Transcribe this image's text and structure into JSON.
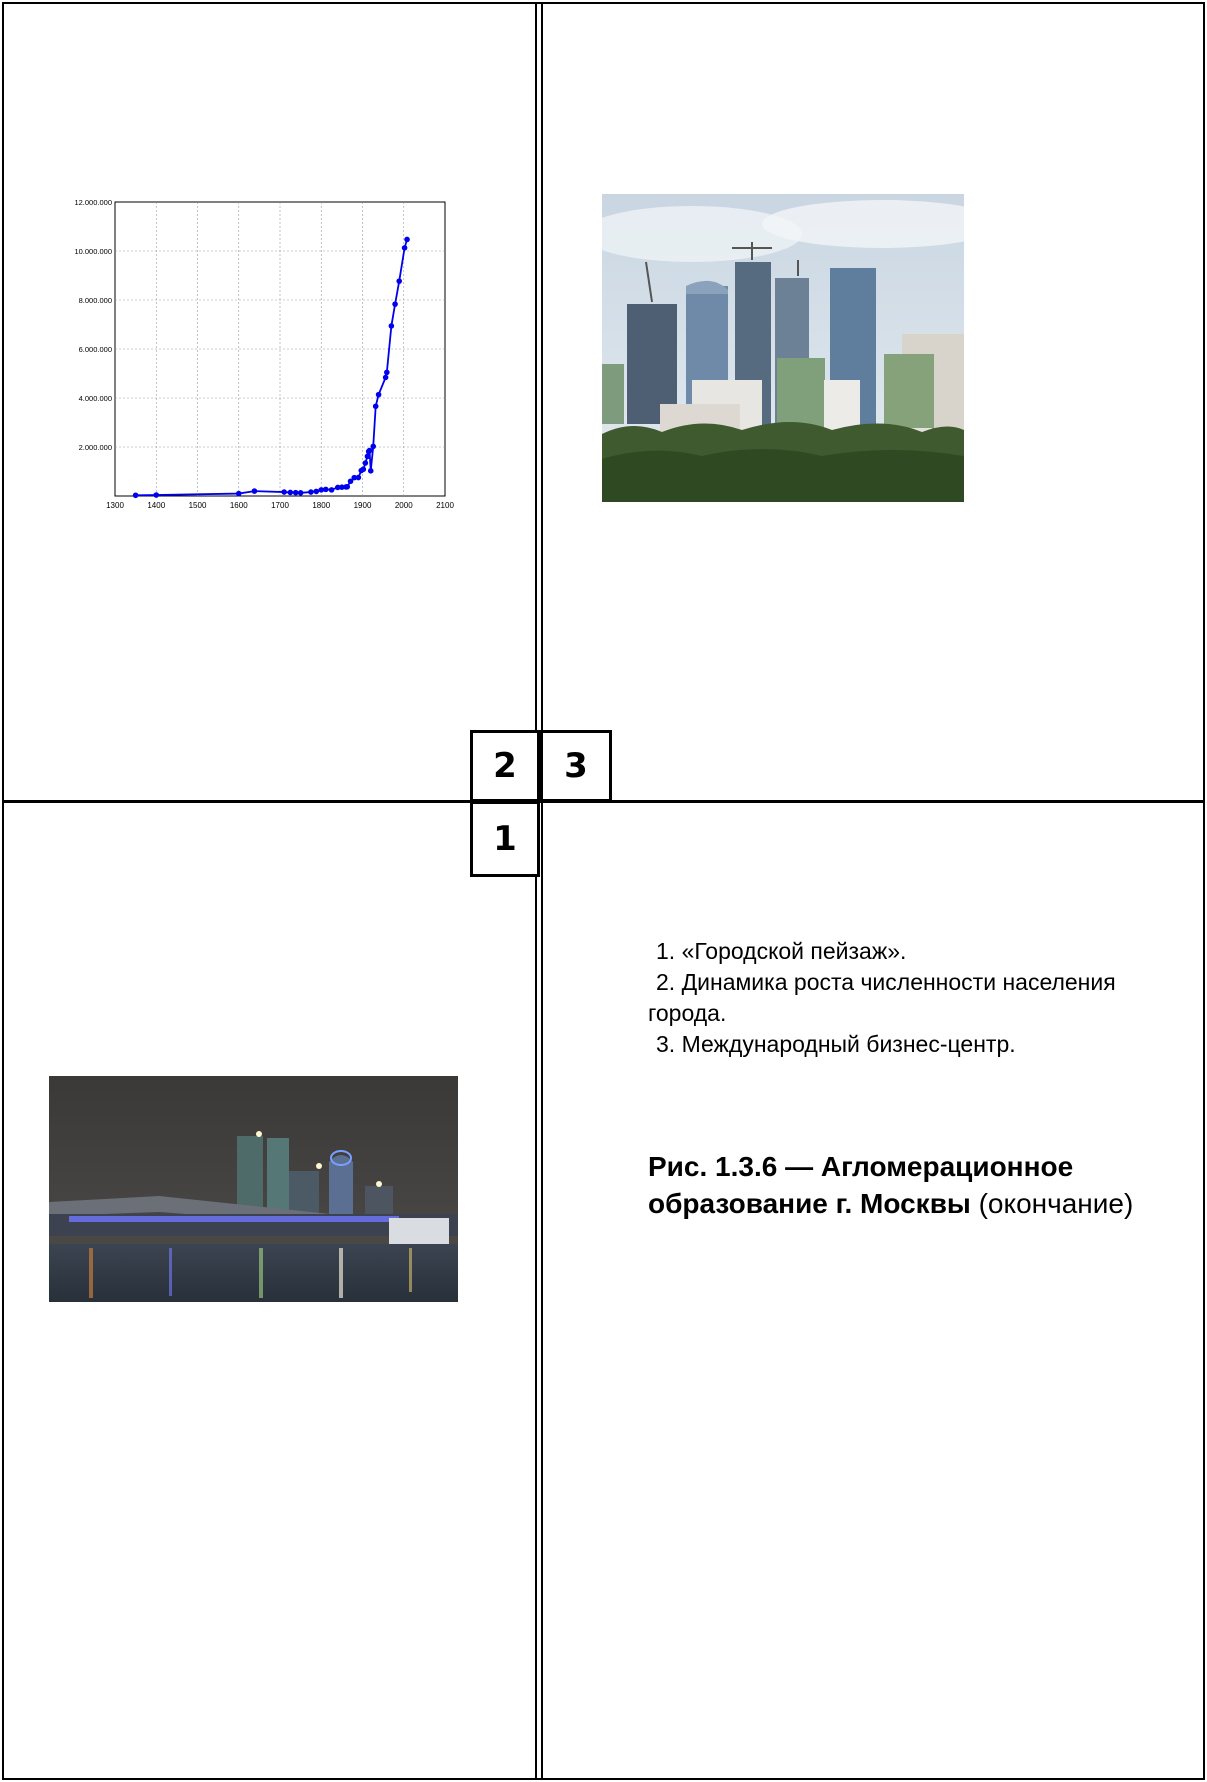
{
  "labels": {
    "box2": "2",
    "box3": "3",
    "box1": "1"
  },
  "captions": {
    "item1": "1. «Городской пейзаж».",
    "item2_line1": "2. Динамика роста численности населения",
    "item2_line2": "города.",
    "item3": "3. Международный бизнес-центр."
  },
  "figure": {
    "title_bold": "Рис. 1.3.6 — Агломерационное образование г. Москвы",
    "title_normal": "(окончание)"
  },
  "chart_data": {
    "type": "line",
    "title": "",
    "xlabel": "",
    "ylabel": "",
    "xlim": [
      1300,
      2100
    ],
    "ylim": [
      0,
      12000000
    ],
    "x_ticks": [
      1300,
      1400,
      1500,
      1600,
      1700,
      1800,
      1900,
      2000,
      2100
    ],
    "x_tick_labels": [
      "1300",
      "1400",
      "1500",
      "1600",
      "1700",
      "1800",
      "1900",
      "2000",
      "2100"
    ],
    "y_ticks": [
      2000000,
      4000000,
      6000000,
      8000000,
      10000000,
      12000000
    ],
    "y_tick_labels": [
      "2.000.000",
      "4.000.000",
      "6.000.000",
      "8.000.000",
      "10.000.000",
      "12.000.000"
    ],
    "grid": true,
    "series_color": "#0000ee",
    "series": [
      {
        "x": [
          1350,
          1400,
          1600,
          1638,
          1710,
          1725,
          1738,
          1750,
          1775,
          1788,
          1800,
          1811,
          1825,
          1840,
          1850,
          1860,
          1863,
          1871,
          1880,
          1890,
          1897,
          1902,
          1907,
          1912,
          1915,
          1917,
          1920,
          1926,
          1932,
          1939,
          1956,
          1959,
          1970,
          1979,
          1989,
          2002,
          2008
        ],
        "y": [
          30000,
          40000,
          100000,
          200000,
          160000,
          145000,
          138000,
          130000,
          161000,
          188000,
          250000,
          270000,
          250000,
          349000,
          360000,
          370000,
          377000,
          602000,
          750000,
          753000,
          1038000,
          1092000,
          1345000,
          1618000,
          1817000,
          1854000,
          1028000,
          2025000,
          3663000,
          4137000,
          4839000,
          5046000,
          6942000,
          7831000,
          8769000,
          10126000,
          10470000
        ]
      }
    ]
  }
}
